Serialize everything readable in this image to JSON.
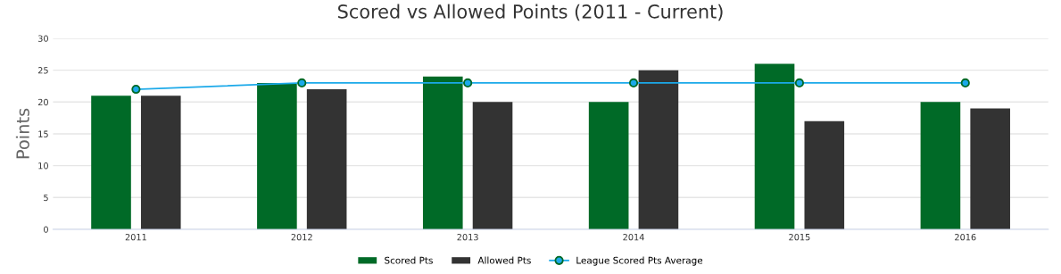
{
  "chart_data": {
    "type": "bar",
    "title": "Scored vs Allowed Points (2011 - Current)",
    "ylabel": "Points",
    "categories": [
      "2011",
      "2012",
      "2013",
      "2014",
      "2015",
      "2016"
    ],
    "series": [
      {
        "name": "Scored Pts",
        "color": "#006a27",
        "values": [
          21,
          23,
          24,
          20,
          26,
          20
        ]
      },
      {
        "name": "Allowed Pts",
        "color": "#333333",
        "values": [
          21,
          22,
          20,
          25,
          17,
          19
        ]
      },
      {
        "name": "League Scored Pts Average",
        "type": "line",
        "color": "#1ba9e9",
        "marker": "circle",
        "values": [
          22,
          23,
          23,
          23,
          23,
          23
        ]
      }
    ],
    "ylim": [
      0,
      30
    ],
    "yticks": [
      0,
      5,
      10,
      15,
      20,
      25,
      30
    ],
    "grid": "y",
    "legend": "bottom"
  }
}
